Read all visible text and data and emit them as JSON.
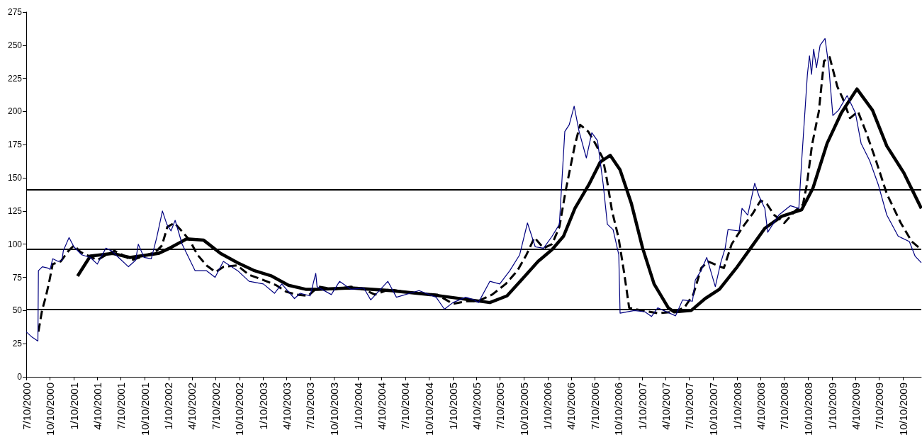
{
  "chart_data": {
    "type": "line",
    "xlim": [
      "2000-07-10",
      "2009-12-20"
    ],
    "xticks": [
      {
        "value": "2000-07-10",
        "label": "7/10/2000"
      },
      {
        "value": "2000-10-10",
        "label": "10/10/2000"
      },
      {
        "value": "2001-01-10",
        "label": "1/10/2001"
      },
      {
        "value": "2001-04-10",
        "label": "4/10/2001"
      },
      {
        "value": "2001-07-10",
        "label": "7/10/2001"
      },
      {
        "value": "2001-10-10",
        "label": "10/10/2001"
      },
      {
        "value": "2002-01-10",
        "label": "1/10/2002"
      },
      {
        "value": "2002-04-10",
        "label": "4/10/2002"
      },
      {
        "value": "2002-07-10",
        "label": "7/10/2002"
      },
      {
        "value": "2002-10-10",
        "label": "10/10/2002"
      },
      {
        "value": "2003-01-10",
        "label": "1/10/2003"
      },
      {
        "value": "2003-04-10",
        "label": "4/10/2003"
      },
      {
        "value": "2003-07-10",
        "label": "7/10/2003"
      },
      {
        "value": "2003-10-10",
        "label": "10/10/2003"
      },
      {
        "value": "2004-01-10",
        "label": "1/10/2004"
      },
      {
        "value": "2004-04-10",
        "label": "4/10/2004"
      },
      {
        "value": "2004-07-10",
        "label": "7/10/2004"
      },
      {
        "value": "2004-10-10",
        "label": "10/10/2004"
      },
      {
        "value": "2005-01-10",
        "label": "1/10/2005"
      },
      {
        "value": "2005-04-10",
        "label": "4/10/2005"
      },
      {
        "value": "2005-07-10",
        "label": "7/10/2005"
      },
      {
        "value": "2005-10-10",
        "label": "10/10/2005"
      },
      {
        "value": "2006-01-10",
        "label": "1/10/2006"
      },
      {
        "value": "2006-04-10",
        "label": "4/10/2006"
      },
      {
        "value": "2006-07-10",
        "label": "7/10/2006"
      },
      {
        "value": "2006-10-10",
        "label": "10/10/2006"
      },
      {
        "value": "2007-01-10",
        "label": "1/10/2007"
      },
      {
        "value": "2007-04-10",
        "label": "4/10/2007"
      },
      {
        "value": "2007-07-10",
        "label": "7/10/2007"
      },
      {
        "value": "2007-10-10",
        "label": "10/10/2007"
      },
      {
        "value": "2008-01-10",
        "label": "1/10/2008"
      },
      {
        "value": "2008-04-10",
        "label": "4/10/2008"
      },
      {
        "value": "2008-07-10",
        "label": "7/10/2008"
      },
      {
        "value": "2008-10-10",
        "label": "10/10/2008"
      },
      {
        "value": "2009-01-10",
        "label": "1/10/2009"
      },
      {
        "value": "2009-04-10",
        "label": "4/10/2009"
      },
      {
        "value": "2009-07-10",
        "label": "7/10/2009"
      },
      {
        "value": "2009-10-10",
        "label": "10/10/2009"
      }
    ],
    "ylim": [
      0,
      275
    ],
    "yticks": [
      0,
      25,
      50,
      75,
      100,
      125,
      150,
      175,
      200,
      225,
      250,
      275
    ],
    "grid": false,
    "marker": "none",
    "ref_lines": [
      {
        "axis": "y",
        "value": 141,
        "color": "#000000"
      },
      {
        "axis": "y",
        "value": 96,
        "color": "#000000"
      },
      {
        "axis": "y",
        "value": 51,
        "color": "#000000"
      }
    ],
    "series": [
      {
        "color": "#000080",
        "line_style": "solid",
        "x": [
          "2000-07-10",
          "2000-08-01",
          "2000-08-24",
          "2000-08-26",
          "2000-09-10",
          "2000-10-01",
          "2000-10-10",
          "2000-10-20",
          "2000-11-10",
          "2000-11-25",
          "2000-11-30",
          "2000-12-22",
          "2001-01-10",
          "2001-02-09",
          "2001-03-14",
          "2001-04-10",
          "2001-05-13",
          "2001-06-04",
          "2001-07-01",
          "2001-08-08",
          "2001-09-05",
          "2001-09-15",
          "2001-10-07",
          "2001-11-04",
          "2001-11-25",
          "2001-12-17",
          "2002-01-03",
          "2002-01-19",
          "2002-02-04",
          "2002-03-03",
          "2002-04-22",
          "2002-06-05",
          "2002-07-08",
          "2002-08-09",
          "2002-10-03",
          "2002-11-16",
          "2003-01-10",
          "2003-02-22",
          "2003-03-22",
          "2003-05-10",
          "2003-06-01",
          "2003-07-09",
          "2003-07-31",
          "2003-08-05",
          "2003-09-29",
          "2003-10-31",
          "2003-12-14",
          "2004-02-01",
          "2004-02-28",
          "2004-05-04",
          "2004-06-06",
          "2004-09-01",
          "2004-11-06",
          "2004-12-08",
          "2005-01-10",
          "2005-02-28",
          "2005-04-02",
          "2005-04-18",
          "2005-06-01",
          "2005-07-09",
          "2005-08-17",
          "2005-09-24",
          "2005-10-24",
          "2005-11-23",
          "2005-12-25",
          "2006-01-27",
          "2006-02-24",
          "2006-03-17",
          "2006-04-03",
          "2006-04-22",
          "2006-05-11",
          "2006-06-08",
          "2006-06-29",
          "2006-07-21",
          "2006-08-12",
          "2006-08-28",
          "2006-09-19",
          "2006-10-11",
          "2006-10-16",
          "2006-12-10",
          "2007-01-20",
          "2007-02-14",
          "2007-03-10",
          "2007-05-18",
          "2007-06-14",
          "2007-07-22",
          "2007-08-02",
          "2007-08-24",
          "2007-09-15",
          "2007-10-18",
          "2007-11-08",
          "2007-11-25",
          "2007-12-06",
          "2008-01-18",
          "2008-01-29",
          "2008-02-20",
          "2008-03-18",
          "2008-04-04",
          "2008-04-26",
          "2008-05-07",
          "2008-06-19",
          "2008-08-02",
          "2008-09-04",
          "2008-09-15",
          "2008-10-07",
          "2008-10-15",
          "2008-10-23",
          "2008-10-31",
          "2008-11-11",
          "2008-11-25",
          "2008-12-14",
          "2008-12-28",
          "2009-01-13",
          "2009-02-04",
          "2009-03-09",
          "2009-04-10",
          "2009-05-02",
          "2009-06-04",
          "2009-07-07",
          "2009-08-09",
          "2009-09-22",
          "2009-11-04",
          "2009-11-26",
          "2009-12-20"
        ],
        "values": [
          34,
          30,
          27,
          80,
          83,
          82,
          81,
          89,
          87,
          88,
          95,
          105,
          98,
          92,
          90,
          85,
          97,
          95,
          90,
          83,
          88,
          100,
          90,
          89,
          105,
          125,
          115,
          110,
          118,
          100,
          80,
          80,
          75,
          87,
          80,
          72,
          70,
          63,
          70,
          59,
          63,
          61,
          78,
          68,
          62,
          72,
          66,
          67,
          58,
          72,
          60,
          65,
          60,
          51,
          56,
          60,
          58,
          56,
          72,
          70,
          80,
          92,
          116,
          98,
          97,
          106,
          115,
          185,
          190,
          204,
          185,
          165,
          184,
          178,
          145,
          115,
          111,
          92,
          48,
          50,
          49,
          45.5,
          52,
          46,
          58,
          57,
          73,
          80,
          90,
          68,
          86,
          97,
          111,
          110,
          127,
          122,
          146,
          136,
          127,
          109,
          122,
          129,
          127,
          163,
          228,
          242,
          228,
          247,
          233,
          250,
          255,
          235,
          197,
          201,
          212,
          199,
          176,
          163,
          145,
          122,
          106,
          102,
          91,
          86
        ]
      },
      {
        "color": "#000000",
        "line_style": "dashed",
        "x": [
          "2000-08-26",
          "2000-09-09",
          "2000-09-23",
          "2000-10-06",
          "2000-10-20",
          "2000-11-20",
          "2000-12-20",
          "2001-01-10",
          "2001-02-05",
          "2001-03-10",
          "2001-04-10",
          "2001-05-15",
          "2001-06-15",
          "2001-07-15",
          "2001-08-20",
          "2001-09-20",
          "2001-10-20",
          "2001-11-20",
          "2001-12-15",
          "2002-01-05",
          "2002-02-01",
          "2002-03-01",
          "2002-04-01",
          "2002-05-01",
          "2002-06-05",
          "2002-07-10",
          "2002-08-10",
          "2002-10-01",
          "2002-11-15",
          "2003-01-10",
          "2003-03-01",
          "2003-04-10",
          "2003-05-20",
          "2003-07-01",
          "2003-08-10",
          "2003-10-10",
          "2003-12-14",
          "2004-02-01",
          "2004-03-15",
          "2004-05-10",
          "2004-07-10",
          "2004-09-10",
          "2004-11-10",
          "2005-01-10",
          "2005-03-01",
          "2005-04-15",
          "2005-06-10",
          "2005-08-01",
          "2005-09-15",
          "2005-10-20",
          "2005-11-20",
          "2005-12-25",
          "2006-01-27",
          "2006-02-24",
          "2006-03-20",
          "2006-04-25",
          "2006-05-15",
          "2006-06-15",
          "2006-07-15",
          "2006-08-10",
          "2006-08-25",
          "2006-09-15",
          "2006-10-10",
          "2006-11-01",
          "2006-11-20",
          "2007-01-10",
          "2007-03-10",
          "2007-05-10",
          "2007-06-20",
          "2007-07-25",
          "2007-08-25",
          "2007-09-20",
          "2007-10-25",
          "2007-11-20",
          "2007-12-20",
          "2008-02-01",
          "2008-03-10",
          "2008-04-10",
          "2008-05-05",
          "2008-06-01",
          "2008-07-10",
          "2008-08-20",
          "2008-09-20",
          "2008-10-05",
          "2008-10-25",
          "2008-11-20",
          "2008-12-10",
          "2009-01-01",
          "2009-01-30",
          "2009-02-20",
          "2009-03-20",
          "2009-04-20",
          "2009-05-20",
          "2009-06-25",
          "2009-08-09",
          "2009-10-02",
          "2009-11-13",
          "2009-12-20"
        ],
        "values": [
          34,
          50,
          60,
          71,
          85,
          87,
          95,
          99,
          94,
          91,
          88,
          92,
          95,
          92,
          88,
          90,
          92,
          94,
          99,
          113,
          116,
          110,
          103,
          92,
          84,
          79,
          83,
          84,
          77,
          73,
          69,
          64,
          62,
          61,
          68,
          66,
          68,
          66,
          62,
          66,
          64,
          63,
          62,
          55,
          57,
          57,
          62,
          70,
          80,
          92,
          105,
          97,
          100,
          113,
          140,
          175,
          190,
          185,
          175,
          165,
          150,
          125,
          105,
          78,
          52,
          50,
          48,
          49,
          52,
          62,
          82,
          87,
          84,
          82,
          100,
          113,
          123,
          133,
          130,
          122,
          116,
          125,
          130,
          145,
          175,
          200,
          238,
          241,
          219,
          210,
          195,
          200,
          185,
          165,
          138,
          116,
          102,
          96
        ]
      },
      {
        "color": "#000000",
        "line_style": "solid",
        "x": [
          "2001-01-24",
          "2001-03-14",
          "2001-06-09",
          "2001-08-14",
          "2001-12-01",
          "2002-01-14",
          "2002-03-20",
          "2002-05-25",
          "2002-07-29",
          "2002-10-03",
          "2002-12-07",
          "2003-02-11",
          "2003-04-17",
          "2003-06-22",
          "2003-08-05",
          "2003-12-14",
          "2004-05-15",
          "2004-10-15",
          "2005-03-17",
          "2005-06-01",
          "2005-08-06",
          "2005-10-10",
          "2005-12-04",
          "2006-01-27",
          "2006-03-12",
          "2006-04-25",
          "2006-06-18",
          "2006-08-01",
          "2006-09-08",
          "2006-10-16",
          "2006-11-28",
          "2007-01-11",
          "2007-02-24",
          "2007-04-20",
          "2007-05-12",
          "2007-07-17",
          "2007-09-09",
          "2007-11-03",
          "2008-01-07",
          "2008-03-02",
          "2008-04-26",
          "2008-06-30",
          "2008-09-15",
          "2008-10-28",
          "2008-12-22",
          "2009-02-15",
          "2009-04-16",
          "2009-06-15",
          "2009-08-09",
          "2009-10-13",
          "2009-12-20"
        ],
        "values": [
          76,
          91,
          93,
          90,
          93,
          97,
          104,
          103,
          93,
          86,
          80,
          76,
          69,
          66,
          66,
          67,
          65,
          62,
          58,
          56,
          61,
          75,
          87,
          96,
          106,
          127,
          145,
          162,
          167,
          156,
          131,
          97,
          70,
          52,
          49,
          50,
          59,
          66,
          82,
          97,
          112,
          121,
          126,
          142,
          176,
          199,
          217,
          201,
          174,
          154,
          127
        ]
      }
    ]
  }
}
